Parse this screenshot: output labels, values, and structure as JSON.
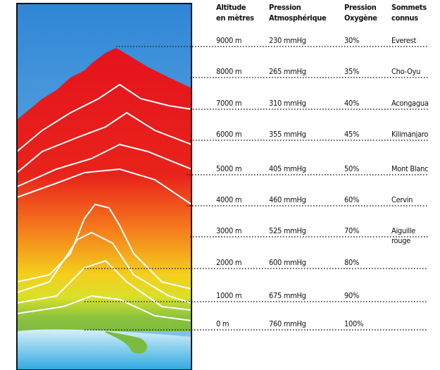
{
  "table": {
    "header": [
      [
        "Altitude",
        "en mètres"
      ],
      [
        "Pression",
        "Atmosphérique"
      ],
      [
        "Pression",
        "Oxygène"
      ],
      [
        "Sommets",
        "connus"
      ]
    ],
    "rows": [
      [
        "9000 m",
        "230 mmHg",
        "30%",
        "Everest"
      ],
      [
        "8000 m",
        "265 mmHg",
        "35%",
        "Cho-Oyu"
      ],
      [
        "7000 m",
        "310 mmHg",
        "40%",
        "Acongagua"
      ],
      [
        "6000 m",
        "355 mmHg",
        "45%",
        "Kilimanjaro"
      ],
      [
        "5000 m",
        "405 mmHg",
        "50%",
        "Mont Blanc"
      ],
      [
        "4000 m",
        "460 mmHg",
        "60%",
        "Cervin"
      ],
      [
        "3000 m",
        "525 mmHg",
        "70%",
        "Aiguille rouge"
      ],
      [
        "2000 m",
        "600 mmHg",
        "80%"
      ],
      [
        "1000 m",
        "675 mmHg",
        "90%"
      ],
      [
        "0 m",
        "760 mmHg",
        "100%"
      ]
    ]
  }
}
